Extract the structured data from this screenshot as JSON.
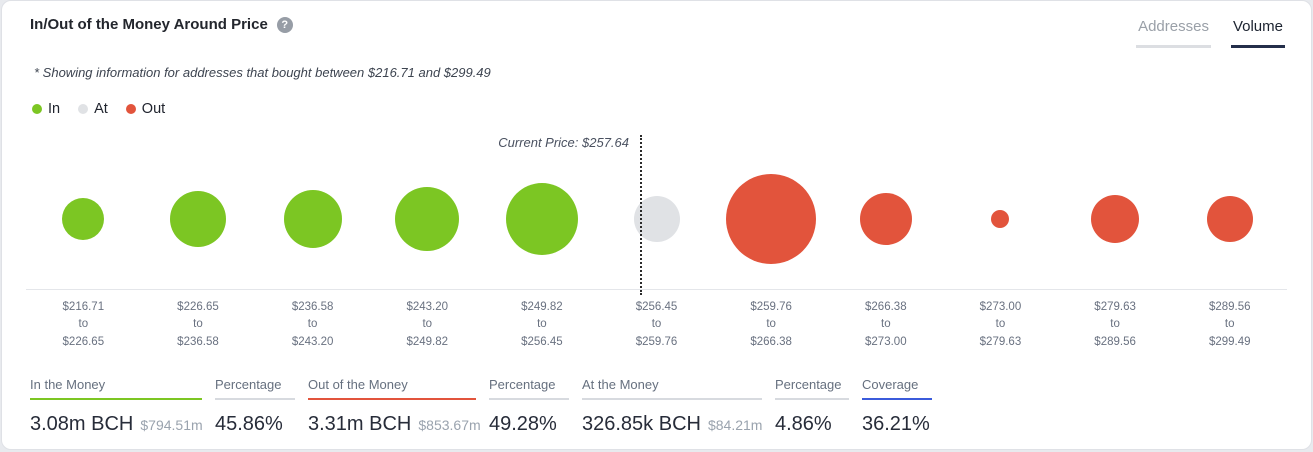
{
  "colors": {
    "in": "#7cc623",
    "at": "#e0e2e5",
    "out": "#e2543c",
    "tab_active_underline": "#242e4a",
    "coverage_underline": "#3b5bdb",
    "neutral_underline": "#d7dadf"
  },
  "header": {
    "title": "In/Out of the Money Around Price",
    "help_icon": "?",
    "tabs": [
      {
        "label": "Addresses",
        "active": false
      },
      {
        "label": "Volume",
        "active": true
      }
    ]
  },
  "note": "* Showing information for addresses that bought between $216.71 and $299.49",
  "legend": [
    {
      "label": "In",
      "color": "#7cc623"
    },
    {
      "label": "At",
      "color": "#e0e2e5"
    },
    {
      "label": "Out",
      "color": "#e2543c"
    }
  ],
  "chart_data": {
    "type": "bubble",
    "title": "In/Out of the Money Around Price",
    "current_price": "$257.64",
    "current_price_label": "Current Price: $257.64",
    "range_separator": "to",
    "buckets": [
      {
        "from": "$216.71",
        "to": "$226.65",
        "status": "in",
        "diameter": 42
      },
      {
        "from": "$226.65",
        "to": "$236.58",
        "status": "in",
        "diameter": 56
      },
      {
        "from": "$236.58",
        "to": "$243.20",
        "status": "in",
        "diameter": 58
      },
      {
        "from": "$243.20",
        "to": "$249.82",
        "status": "in",
        "diameter": 64
      },
      {
        "from": "$249.82",
        "to": "$256.45",
        "status": "in",
        "diameter": 72
      },
      {
        "from": "$256.45",
        "to": "$259.76",
        "status": "at",
        "diameter": 46
      },
      {
        "from": "$259.76",
        "to": "$266.38",
        "status": "out",
        "diameter": 90
      },
      {
        "from": "$266.38",
        "to": "$273.00",
        "status": "out",
        "diameter": 52
      },
      {
        "from": "$273.00",
        "to": "$279.63",
        "status": "out",
        "diameter": 18
      },
      {
        "from": "$279.63",
        "to": "$289.56",
        "status": "out",
        "diameter": 48
      },
      {
        "from": "$289.56",
        "to": "$299.49",
        "status": "out",
        "diameter": 46
      }
    ]
  },
  "stats": [
    {
      "label": "In the Money",
      "value": "3.08m BCH",
      "sub": "$794.51m",
      "underline": "#7cc623"
    },
    {
      "label": "Percentage",
      "value": "45.86%",
      "sub": "",
      "underline": "#d7dadf"
    },
    {
      "label": "Out of the Money",
      "value": "3.31m BCH",
      "sub": "$853.67m",
      "underline": "#e2543c"
    },
    {
      "label": "Percentage",
      "value": "49.28%",
      "sub": "",
      "underline": "#d7dadf"
    },
    {
      "label": "At the Money",
      "value": "326.85k BCH",
      "sub": "$84.21m",
      "underline": "#d7dadf"
    },
    {
      "label": "Percentage",
      "value": "4.86%",
      "sub": "",
      "underline": "#d7dadf"
    },
    {
      "label": "Coverage",
      "value": "36.21%",
      "sub": "",
      "underline": "#3b5bdb"
    }
  ]
}
